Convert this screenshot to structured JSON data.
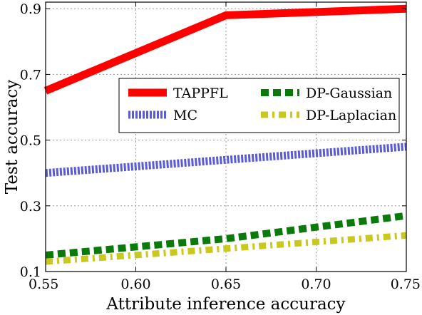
{
  "chart_data": {
    "type": "line",
    "title": "",
    "xlabel": "Attribute inference accuracy",
    "ylabel": "Test accuracy",
    "xlim": [
      0.55,
      0.75
    ],
    "ylim": [
      0.1,
      0.92
    ],
    "x_ticks": [
      "0.55",
      "0.60",
      "0.65",
      "0.70",
      "0.75"
    ],
    "y_ticks": [
      "0.1",
      "0.3",
      "0.5",
      "0.7",
      "0.9"
    ],
    "grid": true,
    "legend_position": "center-right",
    "series": [
      {
        "name": "TAPPFL",
        "color": "#ff0000",
        "style": "solid",
        "x": [
          0.55,
          0.65,
          0.75
        ],
        "y": [
          0.65,
          0.88,
          0.9
        ]
      },
      {
        "name": "MC",
        "color": "#5b5bd6",
        "style": "dotted",
        "x": [
          0.55,
          0.65,
          0.75
        ],
        "y": [
          0.4,
          0.44,
          0.48
        ]
      },
      {
        "name": "DP-Gaussian",
        "color": "#0a7a0a",
        "style": "dashed",
        "x": [
          0.55,
          0.65,
          0.75
        ],
        "y": [
          0.15,
          0.2,
          0.27
        ]
      },
      {
        "name": "DP-Laplacian",
        "color": "#c8c81e",
        "style": "dashdot",
        "x": [
          0.55,
          0.65,
          0.75
        ],
        "y": [
          0.13,
          0.17,
          0.21
        ]
      }
    ]
  }
}
